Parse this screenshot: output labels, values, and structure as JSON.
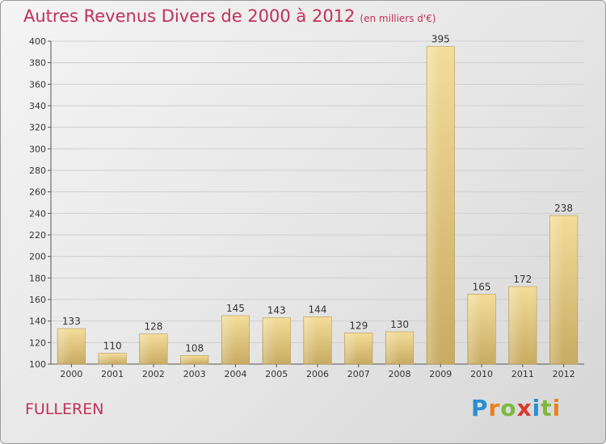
{
  "title": "Autres Revenus Divers de 2000 à 2012",
  "subtitle": "(en milliers d'€)",
  "location": "FULLEREN",
  "brand": {
    "text": "Proxiti",
    "letters": [
      {
        "ch": "P",
        "color": "#2a8fd0"
      },
      {
        "ch": "r",
        "color": "#e7821e"
      },
      {
        "ch": "o",
        "color": "#7cb83e"
      },
      {
        "ch": "x",
        "color": "#d63a2f"
      },
      {
        "ch": "i",
        "color": "#2a8fd0"
      },
      {
        "ch": "t",
        "color": "#7cb83e"
      },
      {
        "ch": "i",
        "color": "#e7821e"
      }
    ]
  },
  "colors": {
    "title": "#c0305a",
    "bar_light": "#f3dd9a",
    "bar_dark": "#c8ab62",
    "grid": "#cfcfcf"
  },
  "chart_data": {
    "type": "bar",
    "title": "Autres Revenus Divers de 2000 à 2012",
    "subtitle": "(en milliers d'€)",
    "categories": [
      "2000",
      "2001",
      "2002",
      "2003",
      "2004",
      "2005",
      "2006",
      "2007",
      "2008",
      "2009",
      "2010",
      "2011",
      "2012"
    ],
    "values": [
      133,
      110,
      128,
      108,
      145,
      143,
      144,
      129,
      130,
      395,
      165,
      172,
      238
    ],
    "ylim": [
      100,
      400
    ],
    "yticks": [
      100,
      120,
      140,
      160,
      180,
      200,
      220,
      240,
      260,
      280,
      300,
      320,
      340,
      360,
      380,
      400
    ],
    "grid": true,
    "data_labels": true
  }
}
